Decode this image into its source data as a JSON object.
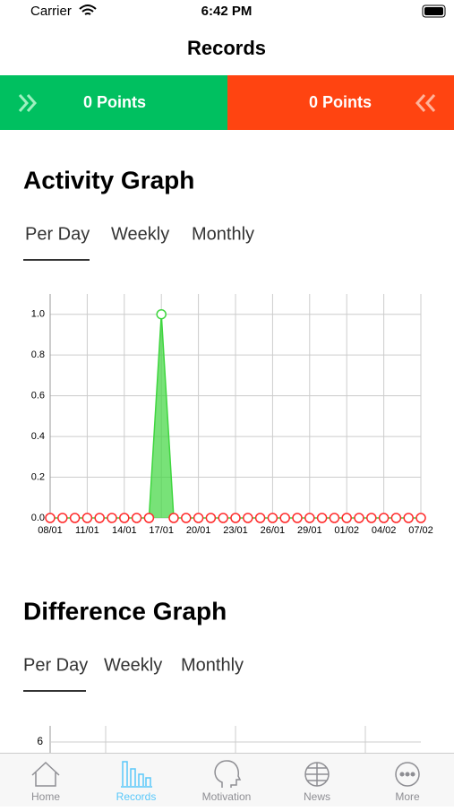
{
  "status_bar": {
    "carrier": "Carrier",
    "time": "6:42 PM"
  },
  "nav_title": "Records",
  "points": {
    "left": "0 Points",
    "right": "0 Points"
  },
  "sections": [
    {
      "title": "Activity Graph",
      "tabs": [
        "Per Day",
        "Weekly",
        "Monthly"
      ]
    },
    {
      "title": "Difference Graph",
      "tabs": [
        "Per Day",
        "Weekly",
        "Monthly"
      ]
    }
  ],
  "chart_data": [
    {
      "type": "area",
      "categories": [
        "08/01",
        null,
        null,
        "11/01",
        null,
        null,
        "14/01",
        null,
        null,
        "17/01",
        null,
        null,
        "20/01",
        null,
        null,
        "23/01",
        null,
        null,
        "26/01",
        null,
        null,
        "29/01",
        null,
        null,
        "01/02",
        null,
        null,
        "04/02",
        null,
        null,
        "07/02"
      ],
      "values": [
        0,
        0,
        0,
        0,
        0,
        0,
        0,
        0,
        0,
        1,
        0,
        0,
        0,
        0,
        0,
        0,
        0,
        0,
        0,
        0,
        0,
        0,
        0,
        0,
        0,
        0,
        0,
        0,
        0,
        0,
        0
      ],
      "color": "#3fd63f",
      "zero_color": "#ff2a2a",
      "ylim": [
        0,
        1.1
      ],
      "yticks": [
        {
          "value": 0,
          "label": "0.0"
        },
        0.2,
        0.4,
        0.6,
        0.8,
        {
          "value": 1,
          "label": "1.0"
        }
      ],
      "grid": true
    },
    {
      "type": "line",
      "yticks": [
        6
      ],
      "grid": true
    }
  ],
  "tab_bar": {
    "items": [
      "Home",
      "Records",
      "Motivation",
      "News",
      "More"
    ],
    "active": 1
  }
}
